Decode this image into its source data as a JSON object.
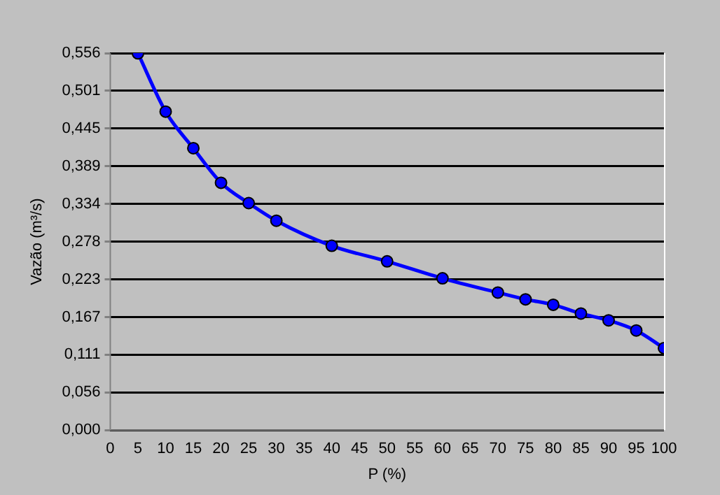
{
  "chart_data": {
    "type": "line",
    "xlabel": "P (%)",
    "ylabel": "Vazão (m³/s)",
    "x": [
      5,
      10,
      15,
      20,
      25,
      30,
      40,
      50,
      60,
      70,
      75,
      80,
      85,
      90,
      95,
      100
    ],
    "series": [
      {
        "color": "#0000ff",
        "values": [
          0.556,
          0.47,
          0.416,
          0.365,
          0.335,
          0.309,
          0.272,
          0.249,
          0.224,
          0.203,
          0.193,
          0.185,
          0.172,
          0.162,
          0.147,
          0.121
        ]
      }
    ],
    "xlim": [
      0,
      100
    ],
    "xticks": [
      0,
      5,
      10,
      15,
      20,
      25,
      30,
      35,
      40,
      45,
      50,
      55,
      60,
      65,
      70,
      75,
      80,
      85,
      90,
      95,
      100
    ],
    "ylim": [
      0,
      0.5563
    ],
    "yticks": [
      {
        "value": 0,
        "label": "0,000"
      },
      {
        "value": 0.05563,
        "label": "0,056"
      },
      {
        "value": 0.11126,
        "label": "0,111"
      },
      {
        "value": 0.16689,
        "label": "0,167"
      },
      {
        "value": 0.22252,
        "label": "0,223"
      },
      {
        "value": 0.27815,
        "label": "0,278"
      },
      {
        "value": 0.33378,
        "label": "0,334"
      },
      {
        "value": 0.38941,
        "label": "0,389"
      },
      {
        "value": 0.44504,
        "label": "0,445"
      },
      {
        "value": 0.50067,
        "label": "0,501"
      },
      {
        "value": 0.5563,
        "label": "0,556"
      }
    ],
    "grid": "y",
    "legend": false,
    "marker": "circle",
    "line_style": "solid"
  }
}
